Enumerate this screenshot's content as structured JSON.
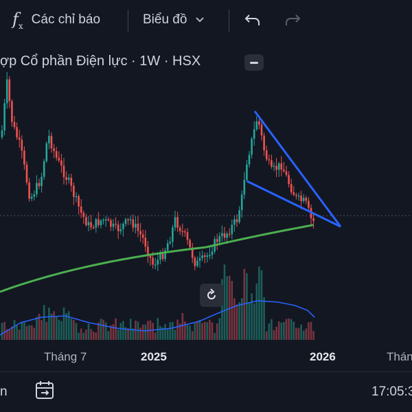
{
  "toolbar": {
    "indicators_label": "Các chỉ báo",
    "chart_type_label": "Biểu đồ"
  },
  "header": {
    "title": "ợp Cổ phần Điện lực · 1W · HSX"
  },
  "icons": {
    "indicators": "function-fx-icon",
    "chart_type_chevron": "chevron-down-icon",
    "undo": "undo-icon",
    "redo": "redo-icon",
    "collapse": "minus-icon",
    "reset": "reset-rotate-icon",
    "date_range": "calendar-goto-icon"
  },
  "colors": {
    "background": "#131722",
    "up_candle": "#26a69a",
    "down_candle": "#ef5350",
    "ma_line": "#4caf50",
    "volume_ma": "#2962ff",
    "pattern_lines": "#2962ff"
  },
  "x_axis": {
    "labels": [
      {
        "text": "Tháng 7",
        "bold": false
      },
      {
        "text": "2025",
        "bold": true
      },
      {
        "text": "2026",
        "bold": true
      },
      {
        "text": "Thán",
        "bold": false
      }
    ]
  },
  "bottom_bar": {
    "left_text": "n",
    "time": "17:05:3"
  },
  "chart_data": {
    "type": "candlestick",
    "interval": "1W",
    "exchange": "HSX",
    "grid": false,
    "legend": "none",
    "overlays": [
      "long moving average (green)",
      "falling wedge trend lines (blue)",
      "volume with moving average"
    ]
  }
}
